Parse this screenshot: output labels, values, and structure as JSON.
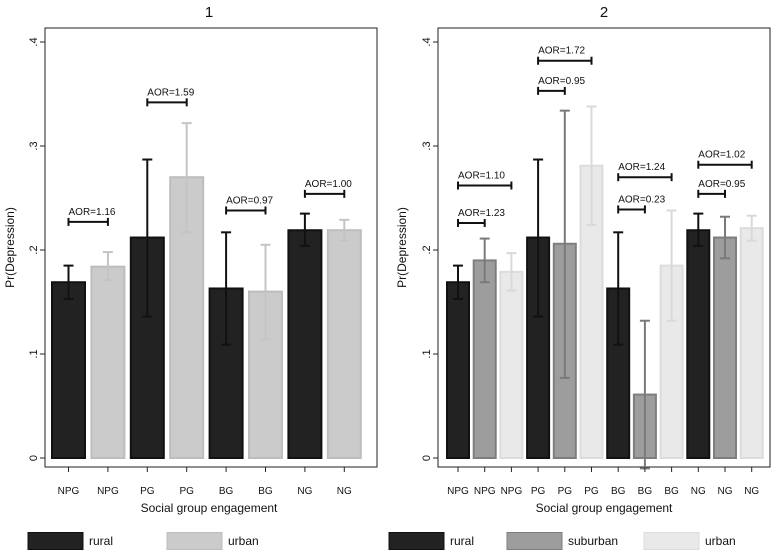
{
  "chart_data": [
    {
      "type": "bar",
      "title": "1",
      "xlabel": "Social group engagement",
      "ylabel": "Pr(Depression)",
      "ylim": [
        0,
        0.4
      ],
      "yticks": [
        0,
        0.1,
        0.2,
        0.3,
        0.4
      ],
      "ytick_labels": [
        "0",
        ".1",
        ".2",
        ".3",
        ".4"
      ],
      "categories": [
        "NPG",
        "NPG",
        "PG",
        "PG",
        "BG",
        "BG",
        "NG",
        "NG"
      ],
      "bars": [
        {
          "label": "NPG",
          "series": "rural",
          "value": 0.169,
          "ci": [
            0.153,
            0.185
          ]
        },
        {
          "label": "NPG",
          "series": "urban",
          "value": 0.184,
          "ci": [
            0.171,
            0.198
          ]
        },
        {
          "label": "PG",
          "series": "rural",
          "value": 0.212,
          "ci": [
            0.136,
            0.287
          ]
        },
        {
          "label": "PG",
          "series": "urban",
          "value": 0.27,
          "ci": [
            0.217,
            0.322
          ]
        },
        {
          "label": "BG",
          "series": "rural",
          "value": 0.163,
          "ci": [
            0.109,
            0.217
          ]
        },
        {
          "label": "BG",
          "series": "urban",
          "value": 0.16,
          "ci": [
            0.114,
            0.205
          ]
        },
        {
          "label": "NG",
          "series": "rural",
          "value": 0.219,
          "ci": [
            0.204,
            0.235
          ]
        },
        {
          "label": "NG",
          "series": "urban",
          "value": 0.219,
          "ci": [
            0.209,
            0.229
          ]
        }
      ],
      "annotations": [
        {
          "text": "AOR=1.16",
          "from_bar": 0,
          "to_bar": 1,
          "y": 0.227
        },
        {
          "text": "AOR=1.59",
          "from_bar": 2,
          "to_bar": 3,
          "y": 0.342
        },
        {
          "text": "AOR=0.97",
          "from_bar": 4,
          "to_bar": 5,
          "y": 0.238
        },
        {
          "text": "AOR=1.00",
          "from_bar": 6,
          "to_bar": 7,
          "y": 0.254
        }
      ],
      "legend": [
        {
          "name": "rural",
          "color": "#222222"
        },
        {
          "name": "urban",
          "color": "#cbcbcb"
        }
      ]
    },
    {
      "type": "bar",
      "title": "2",
      "xlabel": "Social group engagement",
      "ylabel": "Pr(Depression)",
      "ylim": [
        0,
        0.4
      ],
      "yticks": [
        0,
        0.1,
        0.2,
        0.3,
        0.4
      ],
      "ytick_labels": [
        "0",
        ".1",
        ".2",
        ".3",
        ".4"
      ],
      "categories": [
        "NPG",
        "NPG",
        "NPG",
        "PG",
        "PG",
        "PG",
        "BG",
        "BG",
        "BG",
        "NG",
        "NG",
        "NG"
      ],
      "bars": [
        {
          "label": "NPG",
          "series": "rural",
          "value": 0.169,
          "ci": [
            0.153,
            0.185
          ]
        },
        {
          "label": "NPG",
          "series": "suburban",
          "value": 0.19,
          "ci": [
            0.169,
            0.211
          ]
        },
        {
          "label": "NPG",
          "series": "urban",
          "value": 0.179,
          "ci": [
            0.161,
            0.197
          ]
        },
        {
          "label": "PG",
          "series": "rural",
          "value": 0.212,
          "ci": [
            0.136,
            0.287
          ]
        },
        {
          "label": "PG",
          "series": "suburban",
          "value": 0.206,
          "ci": [
            0.077,
            0.334
          ]
        },
        {
          "label": "PG",
          "series": "urban",
          "value": 0.281,
          "ci": [
            0.224,
            0.338
          ]
        },
        {
          "label": "BG",
          "series": "rural",
          "value": 0.163,
          "ci": [
            0.109,
            0.217
          ]
        },
        {
          "label": "BG",
          "series": "suburban",
          "value": 0.061,
          "ci": [
            -0.01,
            0.132
          ]
        },
        {
          "label": "BG",
          "series": "urban",
          "value": 0.185,
          "ci": [
            0.132,
            0.238
          ]
        },
        {
          "label": "NG",
          "series": "rural",
          "value": 0.219,
          "ci": [
            0.204,
            0.235
          ]
        },
        {
          "label": "NG",
          "series": "suburban",
          "value": 0.212,
          "ci": [
            0.192,
            0.232
          ]
        },
        {
          "label": "NG",
          "series": "urban",
          "value": 0.221,
          "ci": [
            0.209,
            0.233
          ]
        }
      ],
      "annotations": [
        {
          "text": "AOR=1.23",
          "from_bar": 0,
          "to_bar": 1,
          "y": 0.226
        },
        {
          "text": "AOR=1.10",
          "from_bar": 0,
          "to_bar": 2,
          "y": 0.262
        },
        {
          "text": "AOR=0.95",
          "from_bar": 3,
          "to_bar": 4,
          "y": 0.353
        },
        {
          "text": "AOR=1.72",
          "from_bar": 3,
          "to_bar": 5,
          "y": 0.382
        },
        {
          "text": "AOR=0.23",
          "from_bar": 6,
          "to_bar": 7,
          "y": 0.239
        },
        {
          "text": "AOR=1.24",
          "from_bar": 6,
          "to_bar": 8,
          "y": 0.27
        },
        {
          "text": "AOR=0.95",
          "from_bar": 9,
          "to_bar": 10,
          "y": 0.254
        },
        {
          "text": "AOR=1.02",
          "from_bar": 9,
          "to_bar": 11,
          "y": 0.282
        }
      ],
      "legend": [
        {
          "name": "rural",
          "color": "#222222"
        },
        {
          "name": "suburban",
          "color": "#9d9d9d"
        },
        {
          "name": "urban",
          "color": "#e9e9e9"
        }
      ]
    }
  ],
  "colors": {
    "rural": {
      "fill": "#222222",
      "edge": "#111111",
      "err": "#111111"
    },
    "suburban": {
      "fill": "#9d9d9d",
      "edge": "#7e7e7e",
      "err": "#7a7a7a"
    },
    "urban_panel1": {
      "fill": "#cbcbcb",
      "edge": "#bdbdbd",
      "err": "#c4c4c4"
    },
    "urban_panel2": {
      "fill": "#e9e9e9",
      "edge": "#dcdcdc",
      "err": "#d9d9d9"
    },
    "panel_bg": "#ffffff",
    "legend_bg": "#ffffff"
  }
}
